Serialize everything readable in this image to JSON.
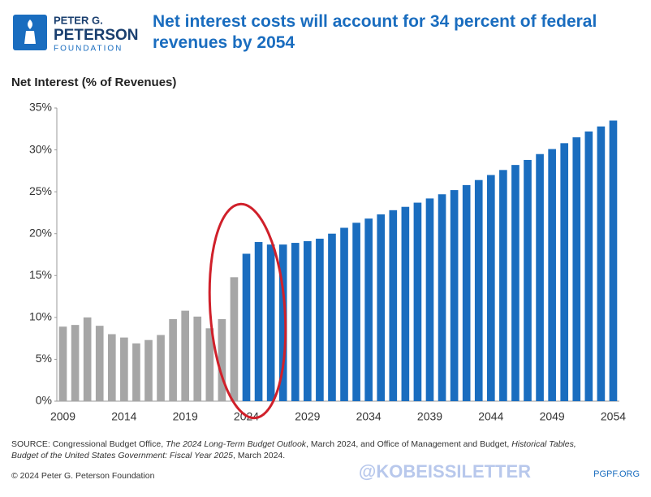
{
  "chart_data": {
    "type": "bar",
    "logo": {
      "line1": "PETER G.",
      "line2": "PETERSON",
      "line3": "FOUNDATION"
    },
    "title": "Net interest costs will account for 34 percent of federal revenues by 2054",
    "y_label": "Net Interest (% of Revenues)",
    "categories": [
      "2009",
      null,
      null,
      null,
      null,
      "2014",
      null,
      null,
      null,
      null,
      "2019",
      null,
      null,
      null,
      null,
      "2024",
      null,
      null,
      null,
      null,
      "2029",
      null,
      null,
      null,
      null,
      "2034",
      null,
      null,
      null,
      null,
      "2039",
      null,
      null,
      null,
      null,
      "2044",
      null,
      null,
      null,
      null,
      "2049",
      null,
      null,
      null,
      null,
      "2054"
    ],
    "series": [
      {
        "color": "#a6a6a6",
        "values": [
          8.9,
          9.1,
          10.0,
          9.0,
          8.0,
          7.6,
          6.9,
          7.3,
          7.9,
          9.8,
          10.8,
          10.1,
          8.7,
          9.8,
          14.8,
          null,
          null,
          null,
          null,
          null,
          null,
          null,
          null,
          null,
          null,
          null,
          null,
          null,
          null,
          null,
          null,
          null,
          null,
          null,
          null,
          null,
          null,
          null,
          null,
          null,
          null,
          null,
          null,
          null,
          null,
          null
        ]
      },
      {
        "color": "#1a6dbf",
        "values": [
          null,
          null,
          null,
          null,
          null,
          null,
          null,
          null,
          null,
          null,
          null,
          null,
          null,
          null,
          null,
          17.6,
          19.0,
          18.7,
          18.7,
          18.9,
          19.1,
          19.4,
          20.0,
          20.7,
          21.3,
          21.8,
          22.3,
          22.8,
          23.2,
          23.7,
          24.2,
          24.7,
          25.2,
          25.8,
          26.4,
          27.0,
          27.6,
          28.2,
          28.8,
          29.5,
          30.1,
          30.8,
          31.5,
          32.2,
          32.8,
          33.5
        ]
      }
    ],
    "ylim": [
      0,
      35
    ],
    "yticks": [
      {
        "value": 0,
        "label": "0%"
      },
      {
        "value": 5,
        "label": "5%"
      },
      {
        "value": 10,
        "label": "10%"
      },
      {
        "value": 15,
        "label": "15%"
      },
      {
        "value": 20,
        "label": "20%"
      },
      {
        "value": 25,
        "label": "25%"
      },
      {
        "value": 30,
        "label": "30%"
      },
      {
        "value": 35,
        "label": "35%"
      }
    ],
    "source": [
      "SOURCE: Congressional Budget Office, ",
      "The 2024 Long-Term Budget Outlook",
      ", March 2024, and Office of Management and Budget, ",
      "Historical Tables,",
      "Budget of the United States Government: Fiscal Year 2025",
      ", March 2024."
    ],
    "copyright": "© 2024 Peter G. Peterson Foundation",
    "watermark": "@KOBEISSILETTER",
    "site": "PGPF.ORG"
  }
}
